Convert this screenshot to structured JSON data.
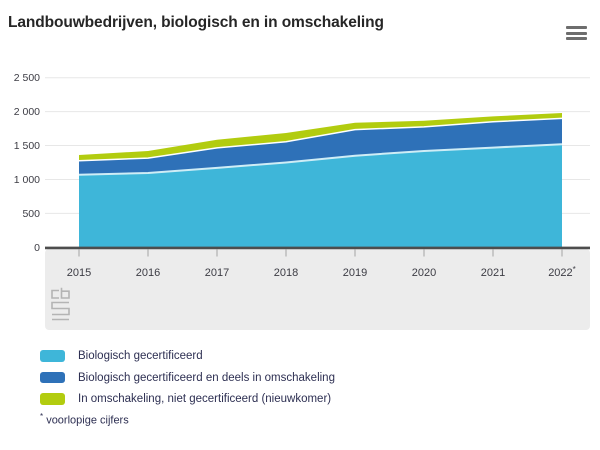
{
  "chart_data": {
    "type": "area",
    "stacked": true,
    "title": "Landbouwbedrijven, biologisch en in omschakeling",
    "categories": [
      "2015",
      "2016",
      "2017",
      "2018",
      "2019",
      "2020",
      "2021",
      "2022*"
    ],
    "series": [
      {
        "name": "Biologisch gecertificeerd",
        "color": "#3EB6D9",
        "values": [
          1070,
          1095,
          1170,
          1250,
          1350,
          1420,
          1470,
          1520
        ]
      },
      {
        "name": "Biologisch gecertificeerd en deels in omschakeling",
        "color": "#2E71B8",
        "values": [
          205,
          220,
          295,
          305,
          385,
          355,
          380,
          380
        ]
      },
      {
        "name": "In omschakeling, niet gecertificeerd (nieuwkomer)",
        "color": "#B2CC0F",
        "values": [
          85,
          105,
          120,
          130,
          100,
          90,
          80,
          80
        ]
      }
    ],
    "ylim": [
      0,
      2500
    ],
    "ytick_step": 500,
    "ytick_labels": [
      "0",
      "500",
      "1 000",
      "1 500",
      "2 000",
      "2 500"
    ],
    "grid": true,
    "legend_position": "bottom-left"
  },
  "footnote": {
    "marker": "*",
    "text": "voorlopige cijfers"
  },
  "colors": {
    "band": "#ECECEC",
    "gridline": "#E7E7E7",
    "axis_line": "#4D4D4D",
    "tick": "#A3A3A3",
    "axis_text": "#3C3C44",
    "boundary_line_cyan": "#CFEDF6",
    "boundary_line_white": "#FFFFFF",
    "logo_gray": "#B4B4B4"
  }
}
